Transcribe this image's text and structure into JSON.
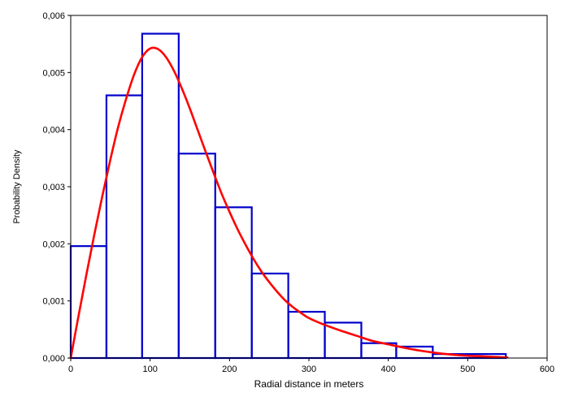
{
  "chart_data": {
    "type": "bar",
    "title": "",
    "xlabel": "Radial distance in meters",
    "ylabel": "Probability Density",
    "xlim": [
      0,
      600
    ],
    "ylim": [
      0,
      0.006
    ],
    "grid": false,
    "x_ticks": [
      0,
      100,
      200,
      300,
      400,
      500,
      600
    ],
    "x_tick_labels": [
      "0",
      "100",
      "200",
      "300",
      "400",
      "500",
      "600"
    ],
    "y_ticks": [
      0,
      0.001,
      0.002,
      0.003,
      0.004,
      0.005,
      0.006
    ],
    "y_tick_labels": [
      "0,000",
      "0,001",
      "0,002",
      "0,003",
      "0,004",
      "0,005",
      "0,006"
    ],
    "histogram": {
      "color": "#0000cc",
      "bins": [
        {
          "x0": 0,
          "x1": 45,
          "density": 0.00196
        },
        {
          "x0": 45,
          "x1": 90,
          "density": 0.0046
        },
        {
          "x0": 90,
          "x1": 136,
          "density": 0.00568
        },
        {
          "x0": 136,
          "x1": 182,
          "density": 0.00358
        },
        {
          "x0": 182,
          "x1": 228,
          "density": 0.00264
        },
        {
          "x0": 228,
          "x1": 274,
          "density": 0.00148
        },
        {
          "x0": 274,
          "x1": 320,
          "density": 0.00081
        },
        {
          "x0": 320,
          "x1": 366,
          "density": 0.00062
        },
        {
          "x0": 366,
          "x1": 410,
          "density": 0.00026
        },
        {
          "x0": 410,
          "x1": 456,
          "density": 0.0002
        },
        {
          "x0": 456,
          "x1": 548,
          "density": 7e-05
        }
      ]
    },
    "fitted_curve": {
      "color": "#ff0000",
      "points": [
        [
          0,
          0
        ],
        [
          10,
          0.00075
        ],
        [
          20,
          0.00148
        ],
        [
          30,
          0.00218
        ],
        [
          40,
          0.00285
        ],
        [
          50,
          0.00348
        ],
        [
          60,
          0.00406
        ],
        [
          70,
          0.00455
        ],
        [
          80,
          0.00497
        ],
        [
          90,
          0.00527
        ],
        [
          100,
          0.00542
        ],
        [
          110,
          0.00541
        ],
        [
          120,
          0.00527
        ],
        [
          130,
          0.00503
        ],
        [
          140,
          0.00472
        ],
        [
          150,
          0.00437
        ],
        [
          160,
          0.00399
        ],
        [
          170,
          0.00361
        ],
        [
          180,
          0.00324
        ],
        [
          190,
          0.00288
        ],
        [
          200,
          0.00256
        ],
        [
          210,
          0.00226
        ],
        [
          220,
          0.00199
        ],
        [
          230,
          0.00174
        ],
        [
          240,
          0.00152
        ],
        [
          250,
          0.00133
        ],
        [
          260,
          0.00116
        ],
        [
          270,
          0.00101
        ],
        [
          280,
          0.00089
        ],
        [
          290,
          0.00079
        ],
        [
          300,
          0.0007
        ],
        [
          320,
          0.00058
        ],
        [
          340,
          0.00048
        ],
        [
          360,
          0.00039
        ],
        [
          380,
          0.0003
        ],
        [
          400,
          0.00024
        ],
        [
          420,
          0.00018
        ],
        [
          440,
          0.00013
        ],
        [
          460,
          9e-05
        ],
        [
          480,
          6e-05
        ],
        [
          500,
          4e-05
        ],
        [
          520,
          3e-05
        ],
        [
          550,
          1e-05
        ]
      ]
    }
  }
}
